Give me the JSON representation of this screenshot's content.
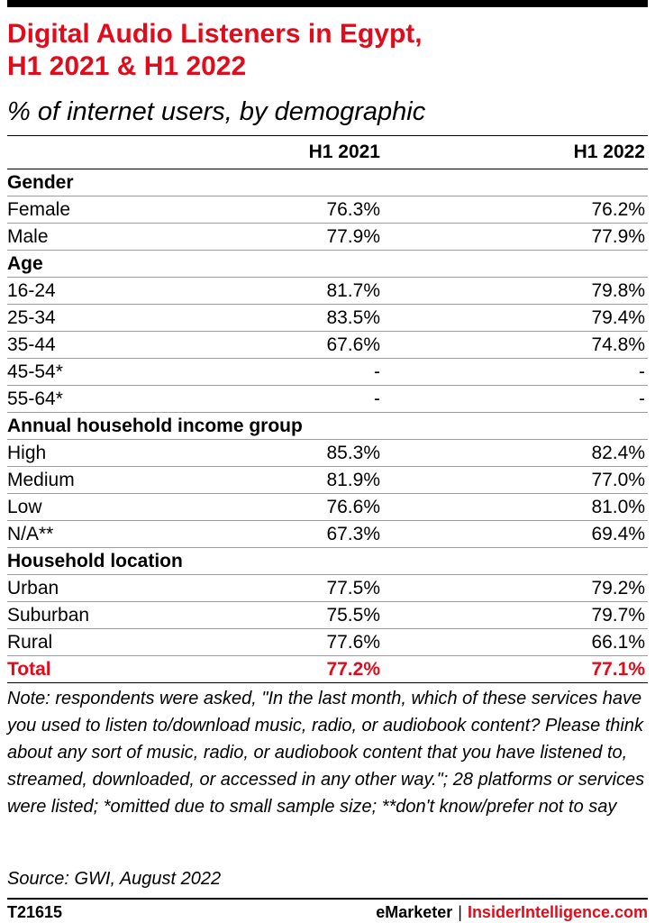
{
  "colors": {
    "accent": "#e00c1c",
    "text": "#000000",
    "rule": "#9e9e9e"
  },
  "title": "Digital Audio Listeners in Egypt,\nH1 2021 & H1 2022",
  "subtitle": "% of internet users, by demographic",
  "chart_data": {
    "type": "table",
    "columns": [
      "",
      "H1 2021",
      "H1 2022"
    ],
    "rows": [
      {
        "label": "Gender",
        "section": true,
        "values": [
          "",
          ""
        ]
      },
      {
        "label": "Female",
        "values": [
          "76.3%",
          "76.2%"
        ]
      },
      {
        "label": "Male",
        "values": [
          "77.9%",
          "77.9%"
        ]
      },
      {
        "label": "Age",
        "section": true,
        "values": [
          "",
          ""
        ]
      },
      {
        "label": "16-24",
        "values": [
          "81.7%",
          "79.8%"
        ]
      },
      {
        "label": "25-34",
        "values": [
          "83.5%",
          "79.4%"
        ]
      },
      {
        "label": "35-44",
        "values": [
          "67.6%",
          "74.8%"
        ]
      },
      {
        "label": "45-54*",
        "values": [
          "-",
          "-"
        ]
      },
      {
        "label": "55-64*",
        "values": [
          "-",
          "-"
        ]
      },
      {
        "label": "Annual household income group",
        "section": true,
        "values": [
          "",
          ""
        ]
      },
      {
        "label": "High",
        "values": [
          "85.3%",
          "82.4%"
        ]
      },
      {
        "label": "Medium",
        "values": [
          "81.9%",
          "77.0%"
        ]
      },
      {
        "label": "Low",
        "values": [
          "76.6%",
          "81.0%"
        ]
      },
      {
        "label": "N/A**",
        "values": [
          "67.3%",
          "69.4%"
        ]
      },
      {
        "label": "Household location",
        "section": true,
        "values": [
          "",
          ""
        ]
      },
      {
        "label": "Urban",
        "values": [
          "77.5%",
          "79.2%"
        ]
      },
      {
        "label": "Suburban",
        "values": [
          "75.5%",
          "79.7%"
        ]
      },
      {
        "label": "Rural",
        "values": [
          "77.6%",
          "66.1%"
        ]
      },
      {
        "label": "Total",
        "total": true,
        "values": [
          "77.2%",
          "77.1%"
        ]
      }
    ]
  },
  "note": "Note: respondents were asked, \"In the last month, which of these services have you used to listen to/download music, radio, or audiobook content? Please think about any sort of music, radio, or audiobook content that you have listened to, streamed, downloaded, or accessed in any other way.\"; 28 platforms or services were listed; *omitted due to small sample size; **don't know/prefer not to say",
  "source": "Source: GWI, August 2022",
  "footer": {
    "code": "T21615",
    "brand_left": "eMarketer",
    "separator": "|",
    "brand_right": "InsiderIntelligence.com"
  }
}
